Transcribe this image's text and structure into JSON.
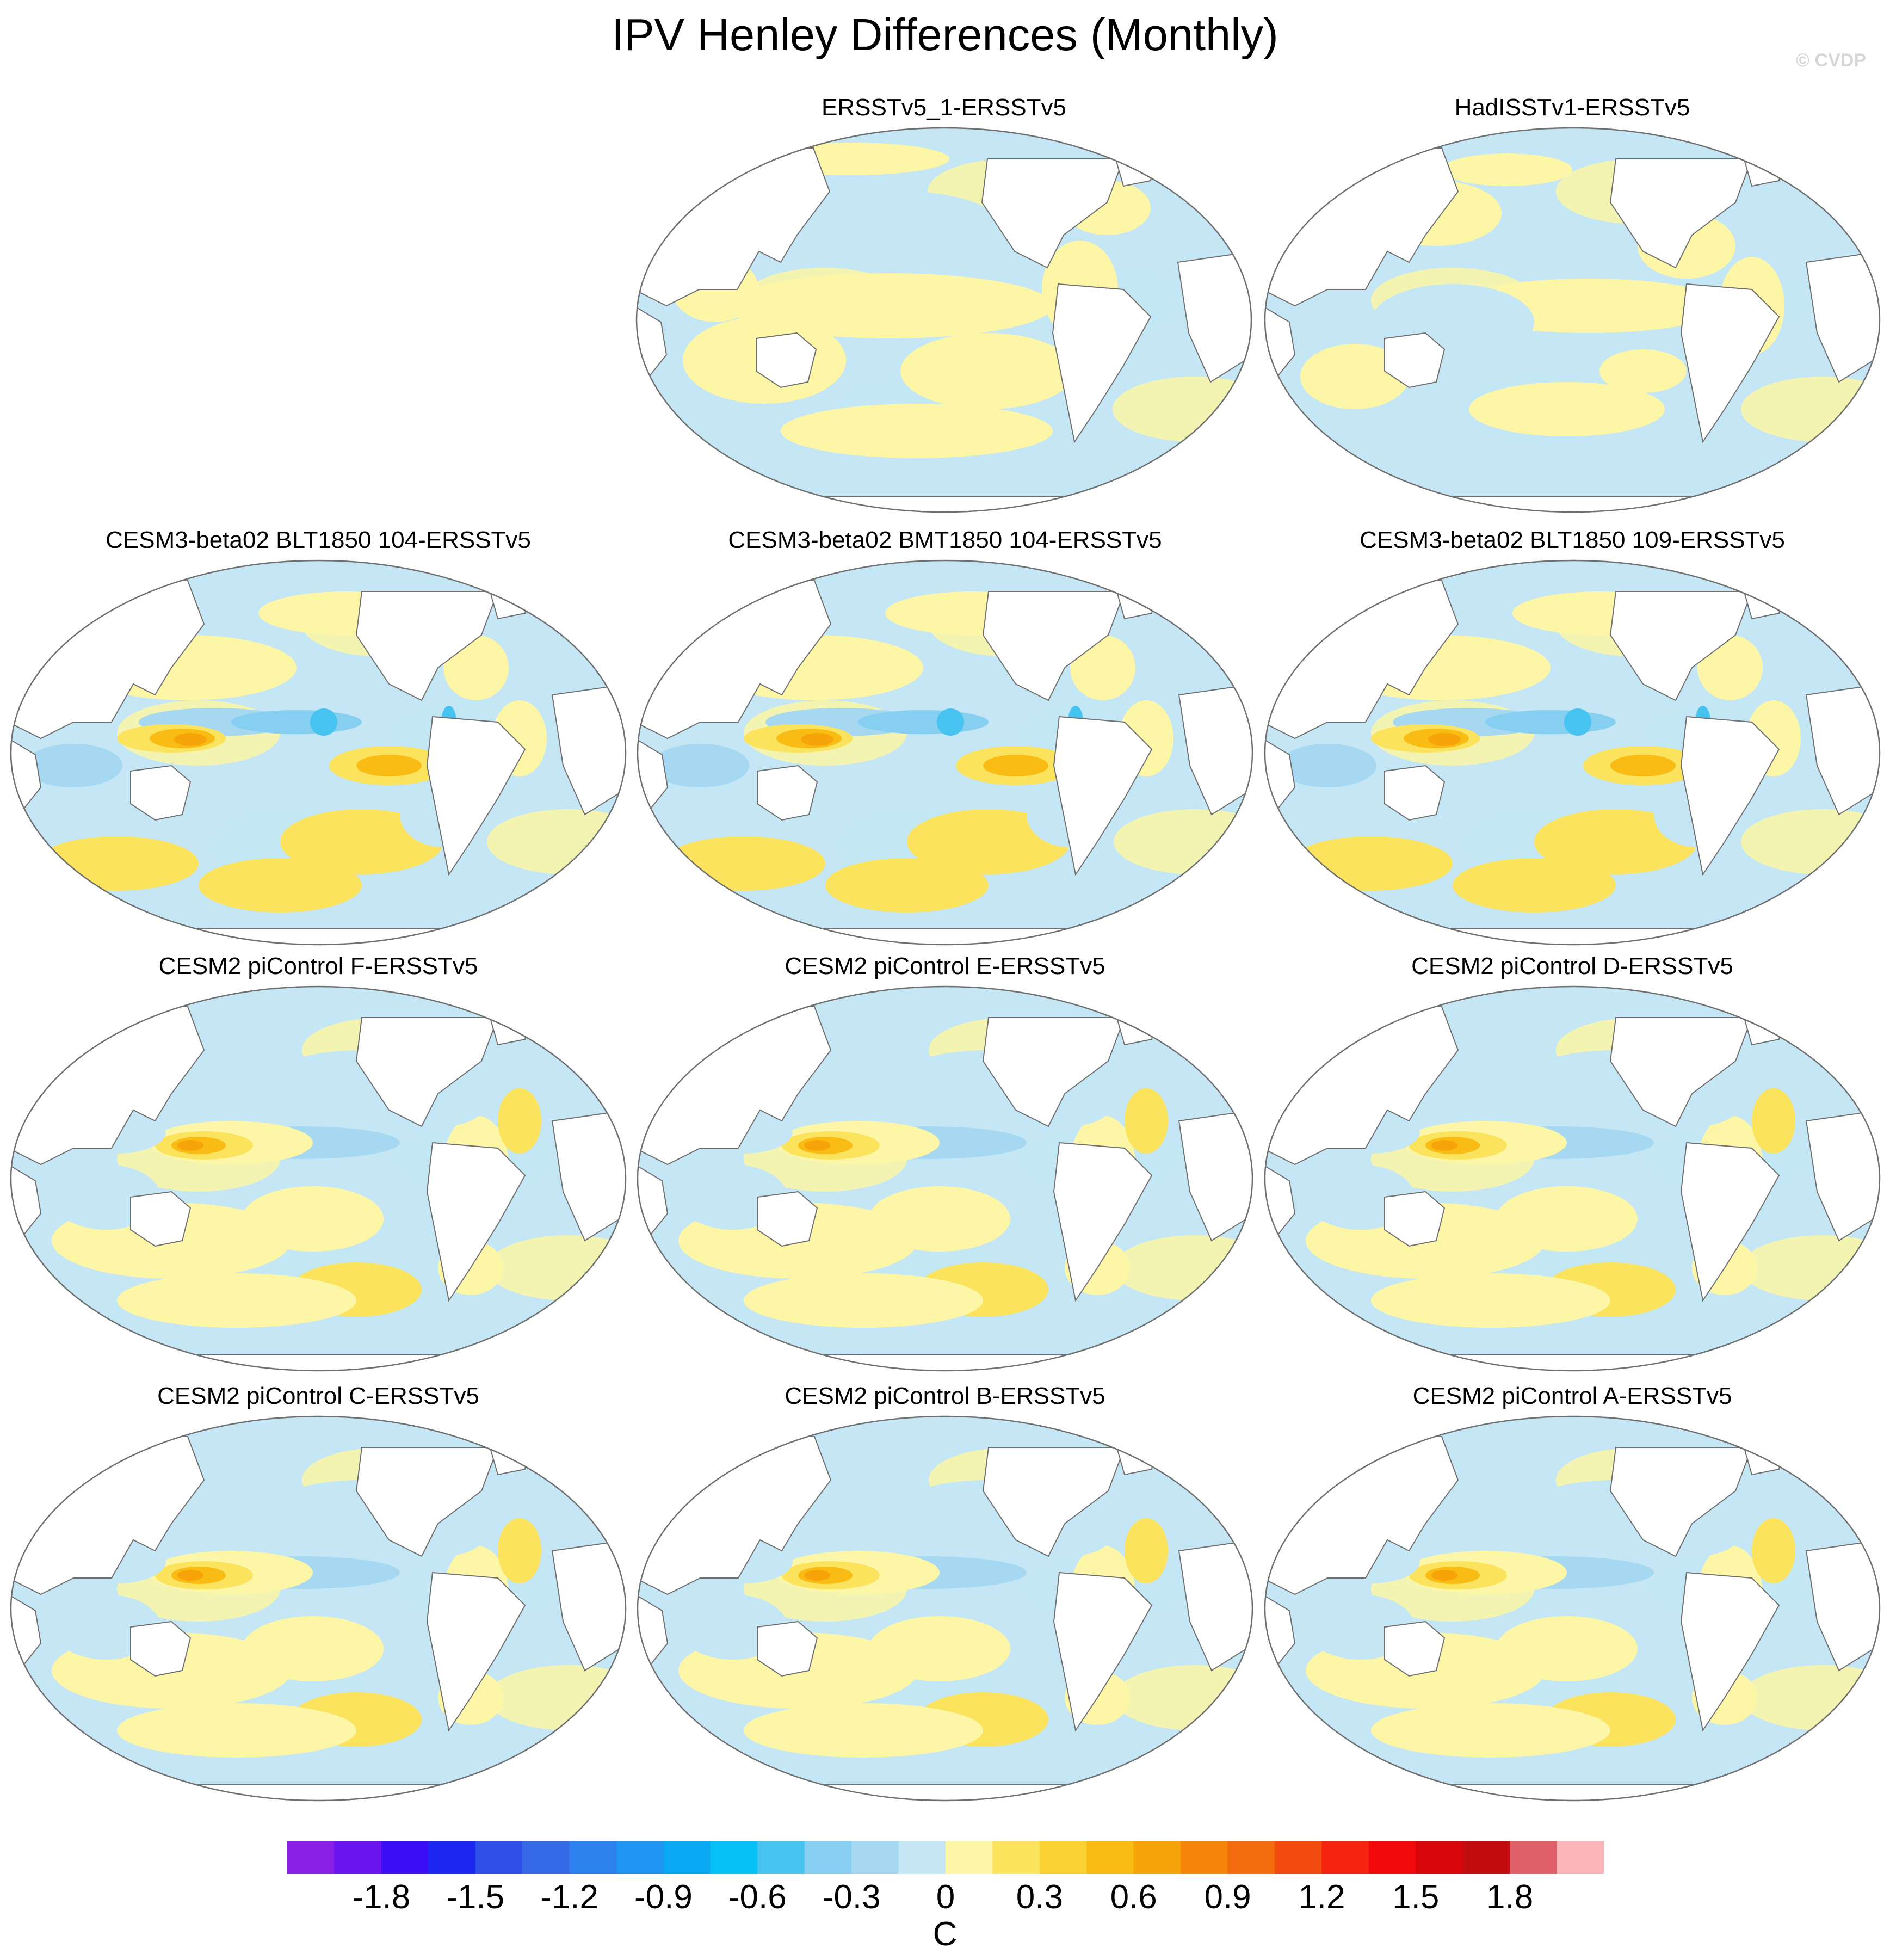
{
  "title": "IPV Henley Differences (Monthly)",
  "watermark": "© CVDP",
  "panels": [
    {
      "title": "ERSSTv5_1-ERSSTv5",
      "style": "obs_a"
    },
    {
      "title": "HadISSTv1-ERSSTv5",
      "style": "obs_b"
    },
    {
      "title": "CESM3-beta02 BLT1850 104-ERSSTv5",
      "style": "beta"
    },
    {
      "title": "CESM3-beta02 BMT1850 104-ERSSTv5",
      "style": "beta"
    },
    {
      "title": "CESM3-beta02 BLT1850 109-ERSSTv5",
      "style": "beta"
    },
    {
      "title": "CESM2 piControl F-ERSSTv5",
      "style": "cesm2"
    },
    {
      "title": "CESM2 piControl E-ERSSTv5",
      "style": "cesm2"
    },
    {
      "title": "CESM2 piControl D-ERSSTv5",
      "style": "cesm2"
    },
    {
      "title": "CESM2 piControl C-ERSSTv5",
      "style": "cesm2"
    },
    {
      "title": "CESM2 piControl B-ERSSTv5",
      "style": "cesm2"
    },
    {
      "title": "CESM2 piControl A-ERSSTv5",
      "style": "cesm2"
    }
  ],
  "colorbar": {
    "unit": "C",
    "tick_labels": [
      "-1.8",
      "-1.5",
      "-1.2",
      "-0.9",
      "-0.6",
      "-0.3",
      "0",
      "0.3",
      "0.6",
      "0.9",
      "1.2",
      "1.5",
      "1.8"
    ],
    "colors": [
      "#8a1fe6",
      "#6a14f0",
      "#3b0ff5",
      "#1c26f0",
      "#2f4fe8",
      "#3669e6",
      "#2d80ee",
      "#1f95f2",
      "#0aa8f2",
      "#05bff5",
      "#47c3f0",
      "#86cff0",
      "#a6d8f2",
      "#c4e6f5",
      "#fdf6a6",
      "#fbe35e",
      "#fbd134",
      "#f9bc14",
      "#f7a40a",
      "#f6860a",
      "#f46b0e",
      "#f34b10",
      "#f52410",
      "#f10a0a",
      "#d8060a",
      "#c10c10",
      "#e0606a",
      "#fbb4b8"
    ]
  }
}
